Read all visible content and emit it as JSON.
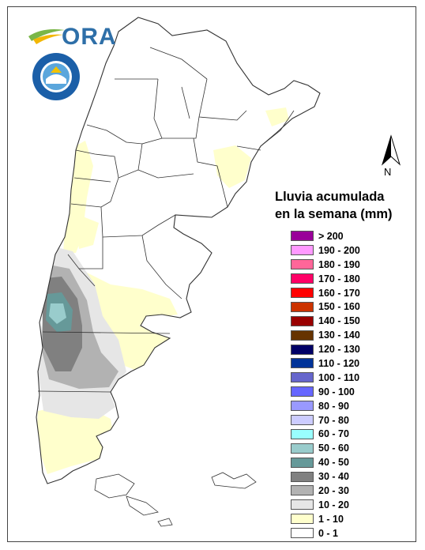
{
  "logo": {
    "text": "ORA"
  },
  "seal": {
    "name": "smn-seal"
  },
  "north_arrow": {
    "label": "N"
  },
  "legend": {
    "title_line1": "Lluvia acumulada",
    "title_line2": "en la semana (mm)",
    "items": [
      {
        "label": "> 200",
        "color": "#990099"
      },
      {
        "label": "190 - 200",
        "color": "#ff99ff"
      },
      {
        "label": "180 - 190",
        "color": "#ff6699"
      },
      {
        "label": "170 - 180",
        "color": "#ff0066"
      },
      {
        "label": "160 - 170",
        "color": "#ff0000"
      },
      {
        "label": "150 - 160",
        "color": "#cc3300"
      },
      {
        "label": "140 - 150",
        "color": "#990000"
      },
      {
        "label": "130 - 140",
        "color": "#663300"
      },
      {
        "label": "120 - 130",
        "color": "#000066"
      },
      {
        "label": "110 - 120",
        "color": "#003399"
      },
      {
        "label": "100 - 110",
        "color": "#6666cc"
      },
      {
        "label": "90 - 100",
        "color": "#6666ff"
      },
      {
        "label": "80 - 90",
        "color": "#9999ff"
      },
      {
        "label": "70 - 80",
        "color": "#ccccff"
      },
      {
        "label": "60 - 70",
        "color": "#99ffff"
      },
      {
        "label": "50 - 60",
        "color": "#99cccc"
      },
      {
        "label": "40 - 50",
        "color": "#669999"
      },
      {
        "label": "30 - 40",
        "color": "#808080"
      },
      {
        "label": "20 - 30",
        "color": "#b2b2b2"
      },
      {
        "label": "10 - 20",
        "color": "#e6e6e6"
      },
      {
        "label": "1 - 10",
        "color": "#ffffcc"
      },
      {
        "label": "0 - 1",
        "color": "#ffffff"
      }
    ]
  }
}
